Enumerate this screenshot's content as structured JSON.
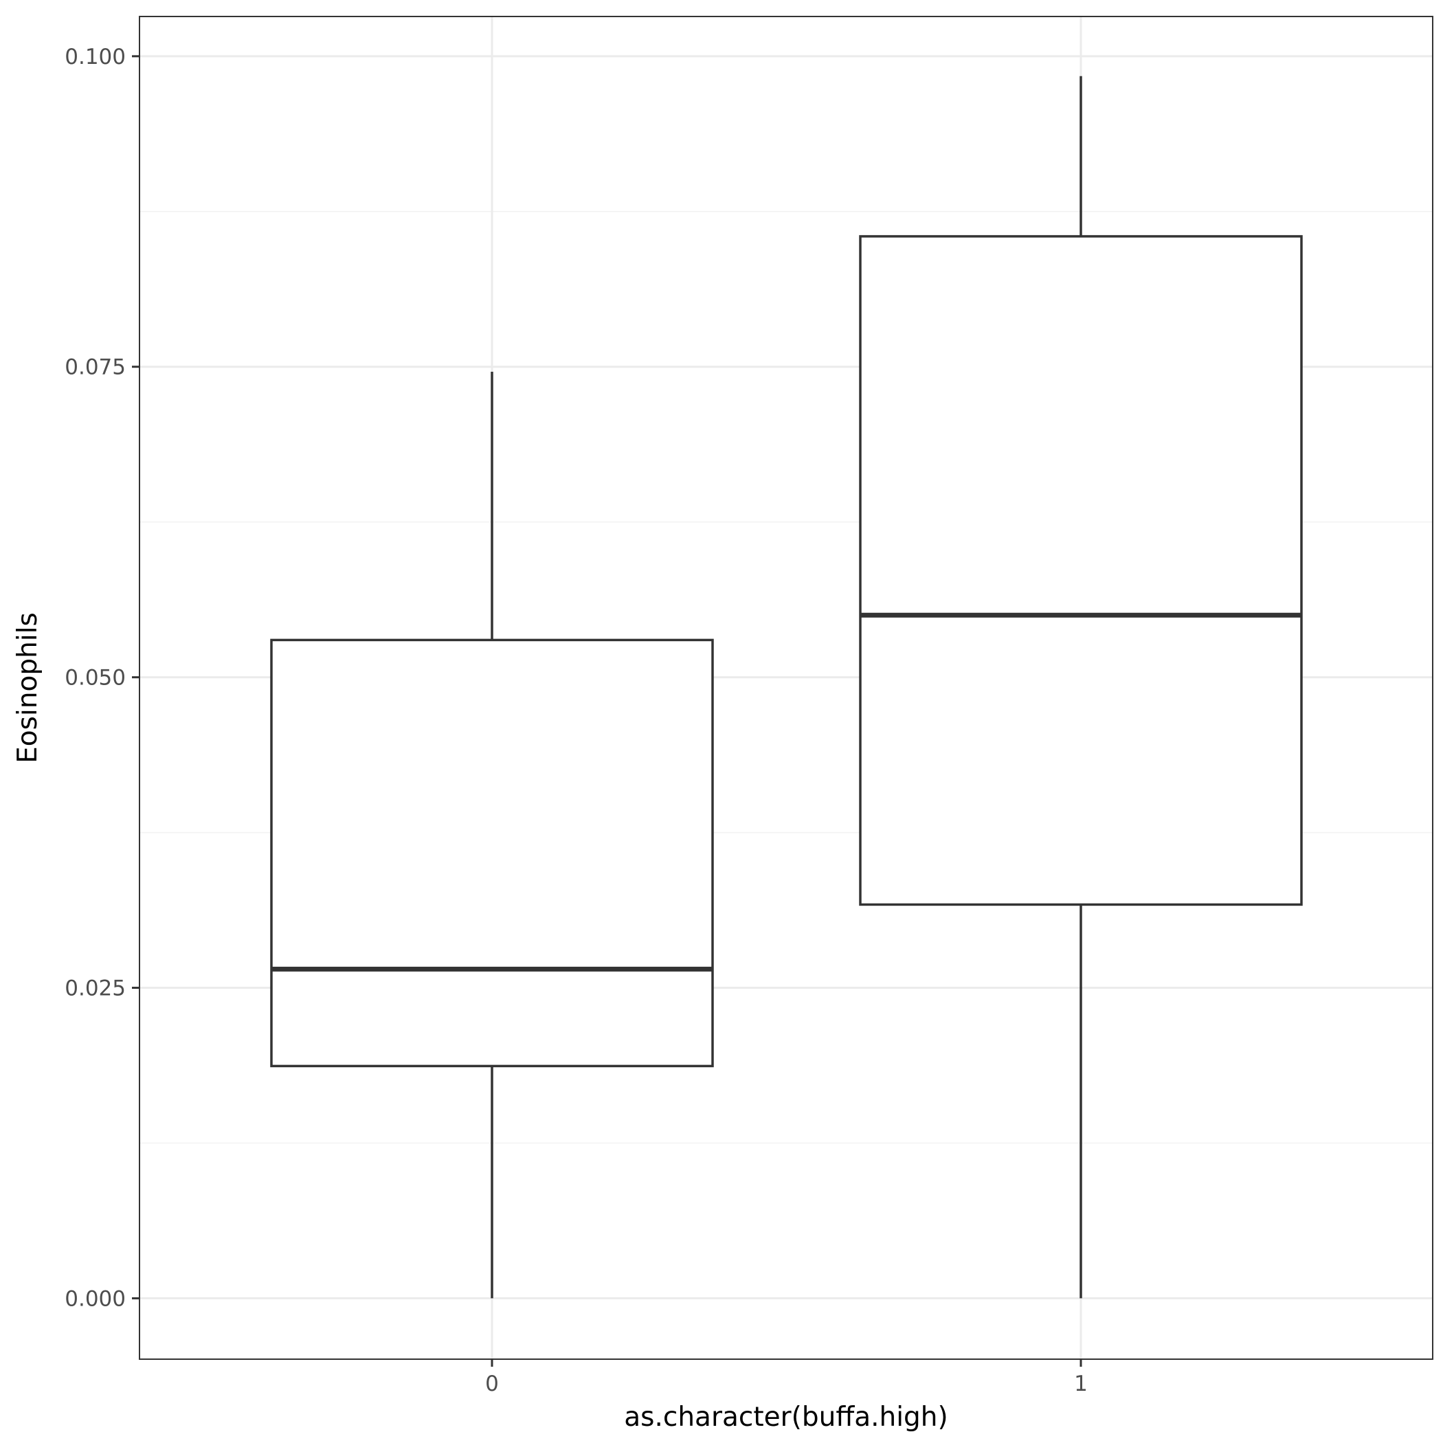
{
  "chart_data": {
    "type": "boxplot",
    "xlabel": "as.character(buffa.high)",
    "ylabel": "Eosinophils",
    "categories": [
      "0",
      "1"
    ],
    "ylim": [
      -0.0049,
      0.1032
    ],
    "yticks": [
      0.0,
      0.025,
      0.05,
      0.075,
      0.1
    ],
    "ytick_labels": [
      "0.000",
      "0.025",
      "0.050",
      "0.075",
      "0.100"
    ],
    "grid": true,
    "legend": "none",
    "boxes": [
      {
        "category": "0",
        "whisker_low": 0.0,
        "q1": 0.0187,
        "median": 0.0265,
        "q3": 0.053,
        "whisker_high": 0.0746
      },
      {
        "category": "1",
        "whisker_low": 0.0,
        "q1": 0.0317,
        "median": 0.055,
        "q3": 0.0855,
        "whisker_high": 0.0984
      }
    ],
    "colors": {
      "box_stroke": "#333333",
      "box_fill": "#ffffff",
      "grid_major": "#ebebeb",
      "grid_minor": "#f2f2f2",
      "panel_border": "#333333",
      "tick": "#333333"
    }
  }
}
